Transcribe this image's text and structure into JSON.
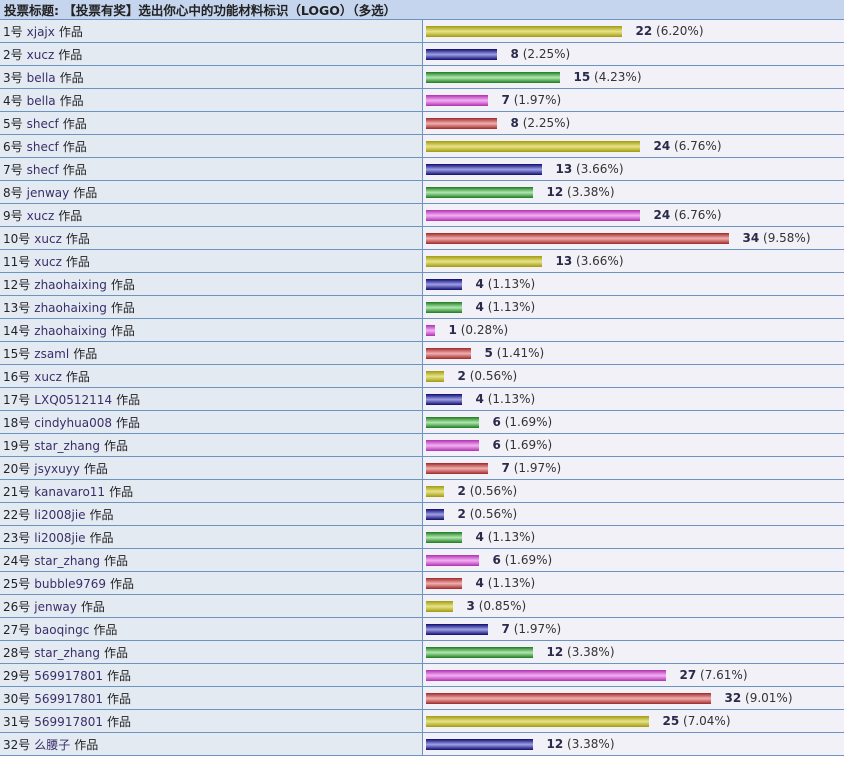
{
  "title": "投票标题: 【投票有奖】选出你心中的功能材料标识（LOGO）（多选）",
  "suffix": "作品",
  "bar_colors": [
    "#d4cf3a",
    "#1e1e9a",
    "#3c9a3c",
    "#d860d8",
    "#c84848"
  ],
  "items": [
    {
      "no": "1号",
      "name": "xjajx",
      "votes": 22,
      "pct": "(6.20%)"
    },
    {
      "no": "2号",
      "name": "xucz",
      "votes": 8,
      "pct": "(2.25%)"
    },
    {
      "no": "3号",
      "name": "bella",
      "votes": 15,
      "pct": "(4.23%)"
    },
    {
      "no": "4号",
      "name": "bella",
      "votes": 7,
      "pct": "(1.97%)"
    },
    {
      "no": "5号",
      "name": "shecf",
      "votes": 8,
      "pct": "(2.25%)"
    },
    {
      "no": "6号",
      "name": "shecf",
      "votes": 24,
      "pct": "(6.76%)"
    },
    {
      "no": "7号",
      "name": "shecf",
      "votes": 13,
      "pct": "(3.66%)"
    },
    {
      "no": "8号",
      "name": "jenway",
      "votes": 12,
      "pct": "(3.38%)"
    },
    {
      "no": "9号",
      "name": "xucz",
      "votes": 24,
      "pct": "(6.76%)"
    },
    {
      "no": "10号",
      "name": "xucz",
      "votes": 34,
      "pct": "(9.58%)"
    },
    {
      "no": "11号",
      "name": "xucz",
      "votes": 13,
      "pct": "(3.66%)"
    },
    {
      "no": "12号",
      "name": "zhaohaixing",
      "votes": 4,
      "pct": "(1.13%)"
    },
    {
      "no": "13号",
      "name": "zhaohaixing",
      "votes": 4,
      "pct": "(1.13%)"
    },
    {
      "no": "14号",
      "name": "zhaohaixing",
      "votes": 1,
      "pct": "(0.28%)"
    },
    {
      "no": "15号",
      "name": "zsaml",
      "votes": 5,
      "pct": "(1.41%)"
    },
    {
      "no": "16号",
      "name": "xucz",
      "votes": 2,
      "pct": "(0.56%)"
    },
    {
      "no": "17号",
      "name": "LXQ0512114",
      "votes": 4,
      "pct": "(1.13%)"
    },
    {
      "no": "18号",
      "name": "cindyhua008",
      "votes": 6,
      "pct": "(1.69%)"
    },
    {
      "no": "19号",
      "name": "star_zhang",
      "votes": 6,
      "pct": "(1.69%)"
    },
    {
      "no": "20号",
      "name": "jsyxuyy",
      "votes": 7,
      "pct": "(1.97%)"
    },
    {
      "no": "21号",
      "name": "kanavaro11",
      "votes": 2,
      "pct": "(0.56%)"
    },
    {
      "no": "22号",
      "name": "li2008jie",
      "votes": 2,
      "pct": "(0.56%)"
    },
    {
      "no": "23号",
      "name": "li2008jie",
      "votes": 4,
      "pct": "(1.13%)"
    },
    {
      "no": "24号",
      "name": "star_zhang",
      "votes": 6,
      "pct": "(1.69%)"
    },
    {
      "no": "25号",
      "name": "bubble9769",
      "votes": 4,
      "pct": "(1.13%)"
    },
    {
      "no": "26号",
      "name": "jenway",
      "votes": 3,
      "pct": "(0.85%)"
    },
    {
      "no": "27号",
      "name": "baoqingc",
      "votes": 7,
      "pct": "(1.97%)"
    },
    {
      "no": "28号",
      "name": "star_zhang",
      "votes": 12,
      "pct": "(3.38%)"
    },
    {
      "no": "29号",
      "name": "569917801",
      "votes": 27,
      "pct": "(7.61%)"
    },
    {
      "no": "30号",
      "name": "569917801",
      "votes": 32,
      "pct": "(9.01%)"
    },
    {
      "no": "31号",
      "name": "569917801",
      "votes": 25,
      "pct": "(7.04%)"
    },
    {
      "no": "32号",
      "name": "么腰子",
      "votes": 12,
      "pct": "(3.38%)"
    }
  ]
}
